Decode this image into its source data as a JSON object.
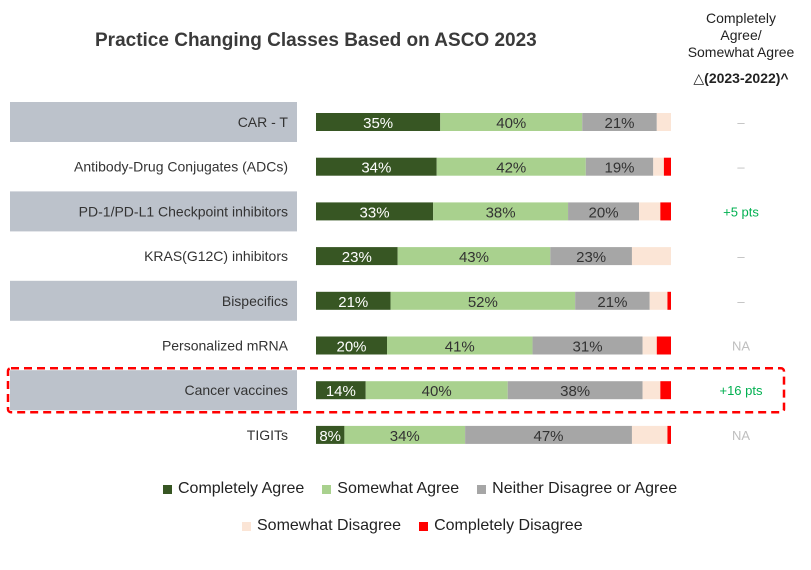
{
  "chart_data": {
    "type": "bar",
    "stacked": true,
    "orientation": "horizontal",
    "title": "Practice Changing Classes Based on ASCO 2023",
    "categories": [
      "CAR - T",
      "Antibody-Drug Conjugates (ADCs)",
      "PD-1/PD-L1 Checkpoint inhibitors",
      "KRAS(G12C) inhibitors",
      "Bispecifics",
      "Personalized mRNA",
      "Cancer vaccines",
      "TIGITs"
    ],
    "series": [
      {
        "name": "Completely Agree",
        "color": "#375623",
        "values": [
          35,
          34,
          33,
          23,
          21,
          20,
          14,
          8
        ]
      },
      {
        "name": "Somewhat Agree",
        "color": "#a9d18e",
        "values": [
          40,
          42,
          38,
          43,
          52,
          41,
          40,
          34
        ]
      },
      {
        "name": "Neither Disagree or Agree",
        "color": "#a6a6a6",
        "values": [
          21,
          19,
          20,
          23,
          21,
          31,
          38,
          47
        ]
      },
      {
        "name": "Somewhat Disagree",
        "color": "#fbe5d6",
        "values": [
          4,
          3,
          6,
          11,
          5,
          4,
          5,
          10
        ]
      },
      {
        "name": "Completely Disagree",
        "color": "#ff0000",
        "values": [
          0,
          2,
          3,
          0,
          1,
          4,
          3,
          1
        ]
      }
    ],
    "data_labels": [
      [
        "35%",
        "40%",
        "21%"
      ],
      [
        "34%",
        "42%",
        "19%"
      ],
      [
        "33%",
        "38%",
        "20%"
      ],
      [
        "23%",
        "43%",
        "23%"
      ],
      [
        "21%",
        "52%",
        "21%"
      ],
      [
        "20%",
        "41%",
        "31%"
      ],
      [
        "14%",
        "40%",
        "38%"
      ],
      [
        "8%",
        "34%",
        "47%"
      ]
    ],
    "xlim": [
      0,
      100
    ],
    "legend_position": "bottom",
    "grid": false,
    "delta_header": {
      "line1": "Completely",
      "line2": "Agree/",
      "line3": "Somewhat Agree",
      "line4": "△(2023-2022)^"
    },
    "delta_values": [
      "–",
      "–",
      "+5 pts",
      "–",
      "–",
      "NA",
      "+16 pts",
      "NA"
    ],
    "delta_colors": {
      "positive": "#00b050",
      "neutral": "#bfbfbf"
    },
    "highlighted_category": "Cancer vaccines",
    "highlight_color": "#ff0000",
    "row_band_color": "#bcc2cb"
  }
}
